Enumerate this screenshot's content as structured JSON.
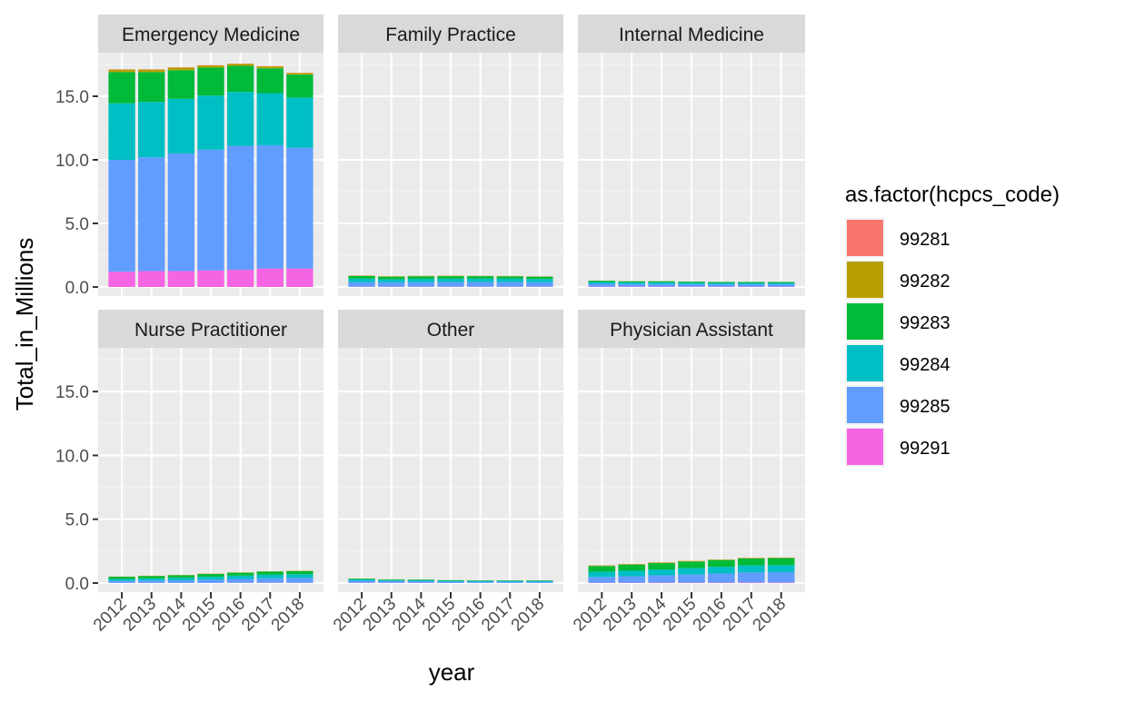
{
  "chart_data": {
    "type": "bar",
    "stacked": true,
    "facet_wrap": true,
    "facets": [
      "Emergency Medicine",
      "Family Practice",
      "Internal Medicine",
      "Nurse Practitioner",
      "Other",
      "Physician Assistant"
    ],
    "categories": [
      "2012",
      "2013",
      "2014",
      "2015",
      "2016",
      "2017",
      "2018"
    ],
    "xlabel": "year",
    "ylabel": "Total_in_Millions",
    "ylim": [
      0,
      18
    ],
    "yticks": [
      "0.0",
      "5.0",
      "10.0",
      "15.0"
    ],
    "grid": true,
    "legend": {
      "title": "as.factor(hcpcs_code)",
      "position": "right",
      "items": [
        "99281",
        "99282",
        "99283",
        "99284",
        "99285",
        "99291"
      ],
      "colors": [
        "#F8766D",
        "#B79F00",
        "#00BA38",
        "#00BFC4",
        "#619CFF",
        "#F564E3"
      ]
    },
    "panels": [
      {
        "facet": "Emergency Medicine",
        "series": [
          {
            "name": "99291",
            "values": [
              1.2,
              1.25,
              1.25,
              1.3,
              1.35,
              1.45,
              1.45
            ]
          },
          {
            "name": "99285",
            "values": [
              8.8,
              8.95,
              9.25,
              9.5,
              9.75,
              9.7,
              9.5
            ]
          },
          {
            "name": "99284",
            "values": [
              4.45,
              4.35,
              4.3,
              4.25,
              4.25,
              4.1,
              3.95
            ]
          },
          {
            "name": "99283",
            "values": [
              2.45,
              2.35,
              2.25,
              2.2,
              2.05,
              1.95,
              1.8
            ]
          },
          {
            "name": "99282",
            "values": [
              0.2,
              0.2,
              0.2,
              0.18,
              0.15,
              0.15,
              0.12
            ]
          },
          {
            "name": "99281",
            "values": [
              0.02,
              0.02,
              0.02,
              0.02,
              0.02,
              0.02,
              0.02
            ]
          }
        ]
      },
      {
        "facet": "Family Practice",
        "series": [
          {
            "name": "99291",
            "values": [
              0.02,
              0.02,
              0.02,
              0.02,
              0.02,
              0.02,
              0.02
            ]
          },
          {
            "name": "99285",
            "values": [
              0.35,
              0.33,
              0.35,
              0.36,
              0.36,
              0.36,
              0.35
            ]
          },
          {
            "name": "99284",
            "values": [
              0.28,
              0.26,
              0.27,
              0.27,
              0.27,
              0.27,
              0.26
            ]
          },
          {
            "name": "99283",
            "values": [
              0.22,
              0.2,
              0.2,
              0.2,
              0.2,
              0.19,
              0.18
            ]
          },
          {
            "name": "99282",
            "values": [
              0.03,
              0.03,
              0.03,
              0.03,
              0.02,
              0.02,
              0.02
            ]
          },
          {
            "name": "99281",
            "values": [
              0.005,
              0.005,
              0.005,
              0.005,
              0.005,
              0.005,
              0.005
            ]
          }
        ]
      },
      {
        "facet": "Internal Medicine",
        "series": [
          {
            "name": "99291",
            "values": [
              0.03,
              0.03,
              0.03,
              0.03,
              0.03,
              0.03,
              0.03
            ]
          },
          {
            "name": "99285",
            "values": [
              0.22,
              0.2,
              0.2,
              0.19,
              0.18,
              0.18,
              0.18
            ]
          },
          {
            "name": "99284",
            "values": [
              0.14,
              0.13,
              0.13,
              0.12,
              0.11,
              0.11,
              0.11
            ]
          },
          {
            "name": "99283",
            "values": [
              0.1,
              0.09,
              0.09,
              0.08,
              0.07,
              0.07,
              0.07
            ]
          },
          {
            "name": "99282",
            "values": [
              0.01,
              0.01,
              0.01,
              0.01,
              0.01,
              0.01,
              0.01
            ]
          },
          {
            "name": "99281",
            "values": [
              0.002,
              0.002,
              0.002,
              0.002,
              0.002,
              0.002,
              0.002
            ]
          }
        ]
      },
      {
        "facet": "Nurse Practitioner",
        "series": [
          {
            "name": "99291",
            "values": [
              0.01,
              0.01,
              0.01,
              0.01,
              0.02,
              0.02,
              0.02
            ]
          },
          {
            "name": "99285",
            "values": [
              0.15,
              0.18,
              0.2,
              0.25,
              0.3,
              0.35,
              0.38
            ]
          },
          {
            "name": "99284",
            "values": [
              0.16,
              0.18,
              0.2,
              0.23,
              0.26,
              0.28,
              0.29
            ]
          },
          {
            "name": "99283",
            "values": [
              0.17,
              0.18,
              0.2,
              0.22,
              0.23,
              0.25,
              0.25
            ]
          },
          {
            "name": "99282",
            "values": [
              0.02,
              0.02,
              0.02,
              0.02,
              0.02,
              0.02,
              0.02
            ]
          },
          {
            "name": "99281",
            "values": [
              0.002,
              0.002,
              0.002,
              0.002,
              0.002,
              0.002,
              0.002
            ]
          }
        ]
      },
      {
        "facet": "Other",
        "series": [
          {
            "name": "99291",
            "values": [
              0.02,
              0.02,
              0.02,
              0.01,
              0.01,
              0.01,
              0.01
            ]
          },
          {
            "name": "99285",
            "values": [
              0.16,
              0.13,
              0.12,
              0.1,
              0.09,
              0.09,
              0.09
            ]
          },
          {
            "name": "99284",
            "values": [
              0.1,
              0.08,
              0.08,
              0.07,
              0.07,
              0.07,
              0.07
            ]
          },
          {
            "name": "99283",
            "values": [
              0.06,
              0.05,
              0.05,
              0.04,
              0.04,
              0.04,
              0.04
            ]
          },
          {
            "name": "99282",
            "values": [
              0.01,
              0.01,
              0.01,
              0.005,
              0.005,
              0.005,
              0.005
            ]
          },
          {
            "name": "99281",
            "values": [
              0.001,
              0.001,
              0.001,
              0.001,
              0.001,
              0.001,
              0.001
            ]
          }
        ]
      },
      {
        "facet": "Physician Assistant",
        "series": [
          {
            "name": "99291",
            "values": [
              0.03,
              0.03,
              0.04,
              0.04,
              0.04,
              0.05,
              0.05
            ]
          },
          {
            "name": "99285",
            "values": [
              0.45,
              0.5,
              0.56,
              0.62,
              0.7,
              0.78,
              0.8
            ]
          },
          {
            "name": "99284",
            "values": [
              0.4,
              0.43,
              0.46,
              0.5,
              0.53,
              0.55,
              0.55
            ]
          },
          {
            "name": "99283",
            "values": [
              0.45,
              0.48,
              0.5,
              0.52,
              0.53,
              0.55,
              0.55
            ]
          },
          {
            "name": "99282",
            "values": [
              0.05,
              0.05,
              0.05,
              0.05,
              0.04,
              0.04,
              0.04
            ]
          },
          {
            "name": "99281",
            "values": [
              0.005,
              0.005,
              0.005,
              0.005,
              0.005,
              0.005,
              0.005
            ]
          }
        ]
      }
    ]
  }
}
